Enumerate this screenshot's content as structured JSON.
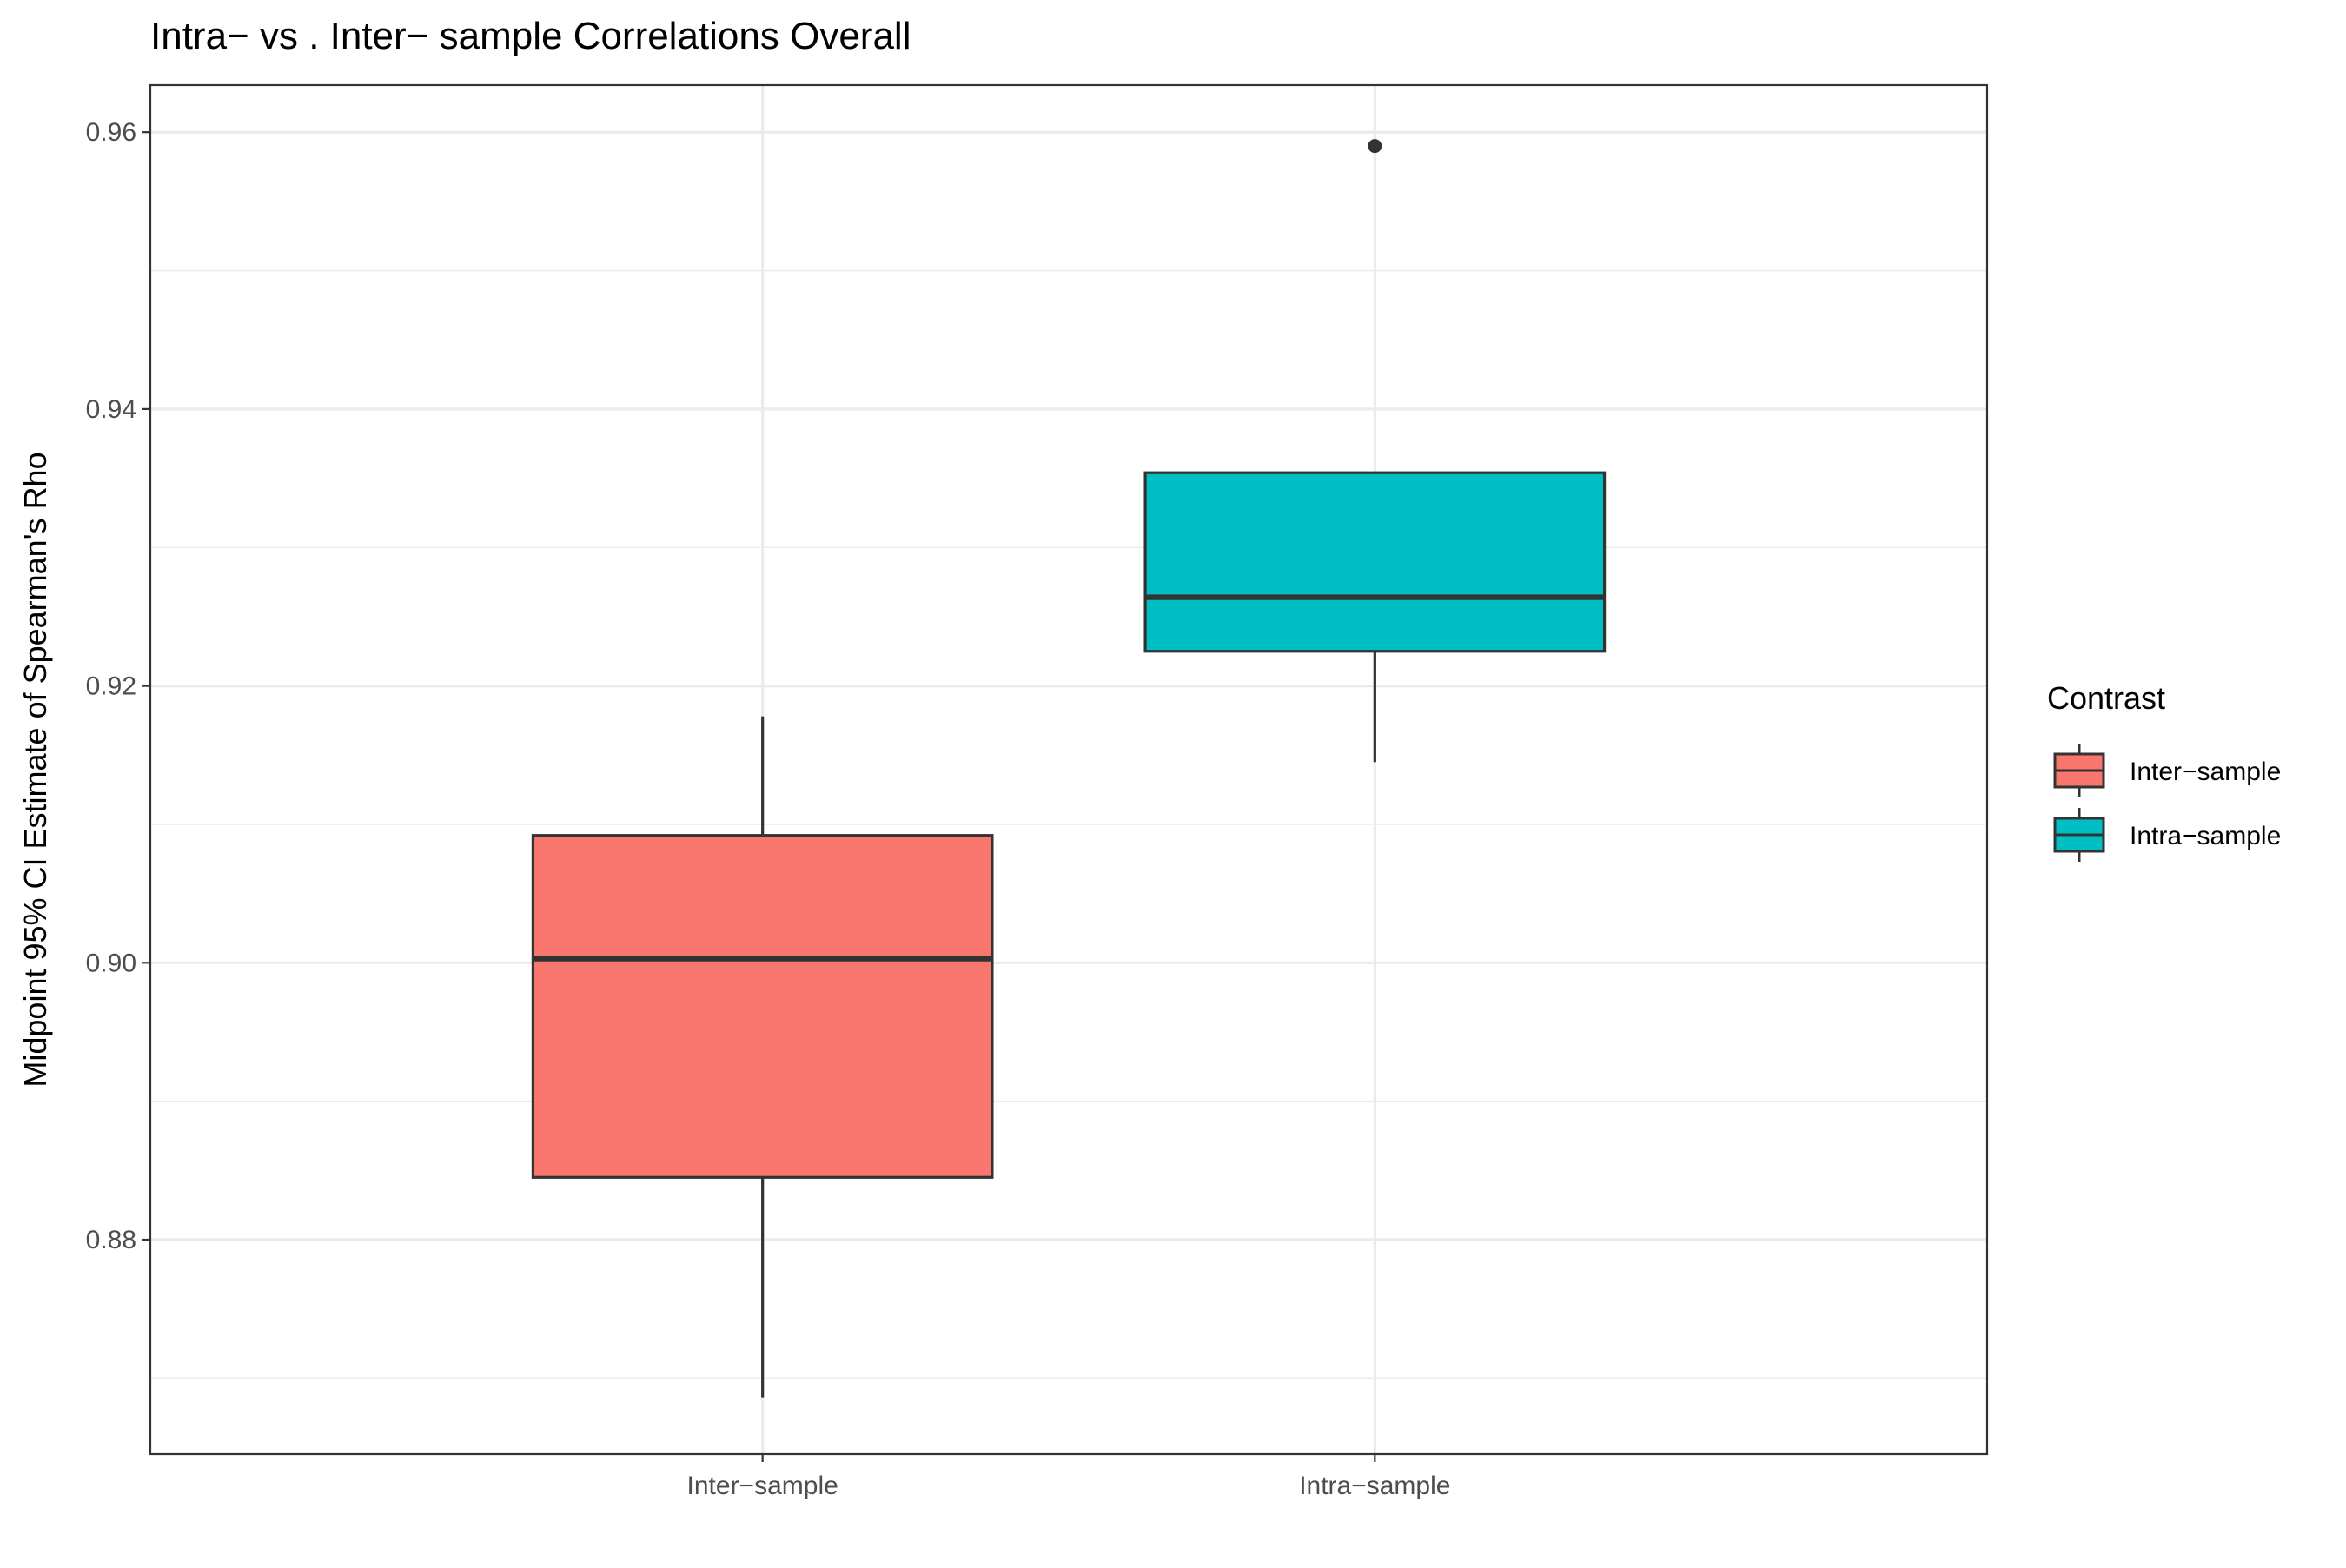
{
  "chart_data": {
    "type": "box",
    "title": "Intra− vs . Inter− sample Correlations Overall",
    "xlabel": "",
    "ylabel": "Midpoint 95% CI Estimate of Spearman's Rho",
    "categories": [
      "Inter−sample",
      "Intra−sample"
    ],
    "ylim": [
      0.8645,
      0.9634
    ],
    "yticks": [
      0.88,
      0.9,
      0.92,
      0.94,
      0.96
    ],
    "ytick_labels": [
      "0.88",
      "0.90",
      "0.92",
      "0.94",
      "0.96"
    ],
    "grid": true,
    "boxes": [
      {
        "category": "Inter−sample",
        "whisker_low": 0.8686,
        "q1": 0.8845,
        "median": 0.9003,
        "q3": 0.9092,
        "whisker_high": 0.9178,
        "outliers": [],
        "color": "#F8766D"
      },
      {
        "category": "Intra−sample",
        "whisker_low": 0.9145,
        "q1": 0.9225,
        "median": 0.9264,
        "q3": 0.9354,
        "whisker_high": 0.9354,
        "outliers": [
          0.959
        ],
        "color": "#00BFC4"
      }
    ],
    "legend": {
      "title": "Contrast",
      "position": "right",
      "items": [
        {
          "label": "Inter−sample",
          "color": "#F8766D"
        },
        {
          "label": "Intra−sample",
          "color": "#00BFC4"
        }
      ]
    }
  }
}
